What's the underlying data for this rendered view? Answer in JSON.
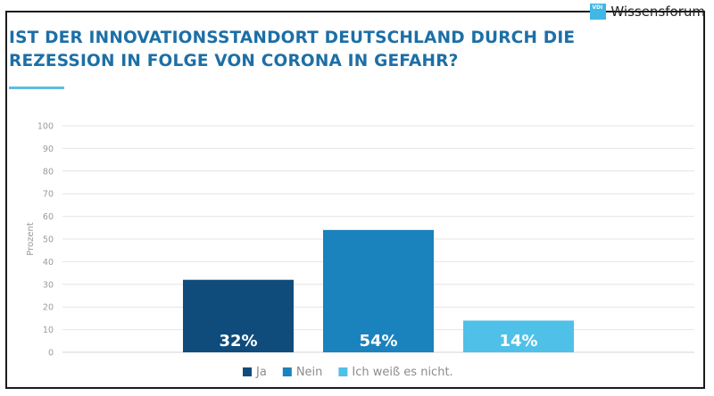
{
  "logo": {
    "badge": "VDI",
    "text": "Wissensforum"
  },
  "title": "IST DER INNOVATIONSSTANDORT DEUTSCHLAND DURCH DIE REZESSION IN FOLGE VON CORONA IN GEFAHR?",
  "colors": {
    "ja": "#0f4c7c",
    "nein": "#1a82bd",
    "unsure": "#4fc1e8",
    "grid": "#e4e4e4",
    "axis_text": "#9a9a9a",
    "legend_text": "#8c8c8c",
    "title": "#1d6fa6"
  },
  "chart_data": {
    "type": "bar",
    "title": "IST DER INNOVATIONSSTANDORT DEUTSCHLAND DURCH DIE REZESSION IN FOLGE VON CORONA IN GEFAHR?",
    "xlabel": "",
    "ylabel": "Prozent",
    "ylim": [
      0,
      100
    ],
    "yticks": [
      0,
      10,
      20,
      30,
      40,
      50,
      60,
      70,
      80,
      90,
      100
    ],
    "grid": true,
    "legend_position": "bottom",
    "series": [
      {
        "name": "Ja",
        "value": 32,
        "label": "32%",
        "color": "#0f4c7c"
      },
      {
        "name": "Nein",
        "value": 54,
        "label": "54%",
        "color": "#1a82bd"
      },
      {
        "name": "Ich weiß es nicht.",
        "value": 14,
        "label": "14%",
        "color": "#4fc1e8"
      }
    ]
  }
}
